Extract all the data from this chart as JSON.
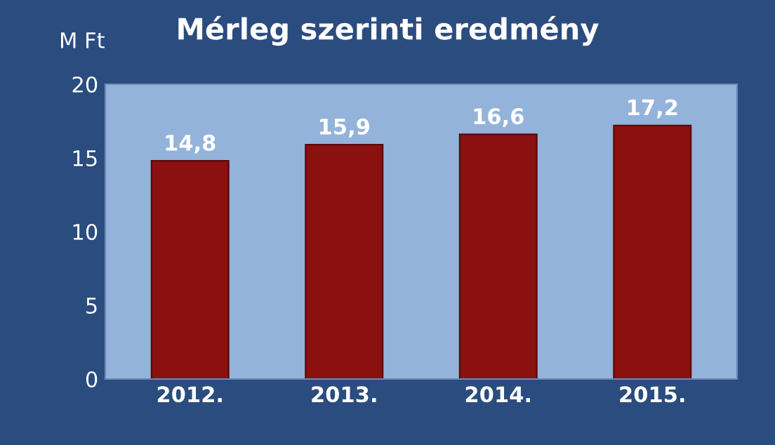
{
  "chart_data": {
    "type": "bar",
    "title": "Mérleg szerinti eredmény",
    "ylabel": "M Ft",
    "categories": [
      "2012.",
      "2013.",
      "2014.",
      "2015."
    ],
    "values": [
      14.8,
      15.9,
      16.6,
      17.2
    ],
    "value_labels": [
      "14,8",
      "15,9",
      "16,6",
      "17,2"
    ],
    "color": "#8b1010",
    "ylim": [
      0,
      20
    ],
    "yticks": [
      0,
      5,
      10,
      15,
      20
    ],
    "grid": false,
    "legend": false
  }
}
